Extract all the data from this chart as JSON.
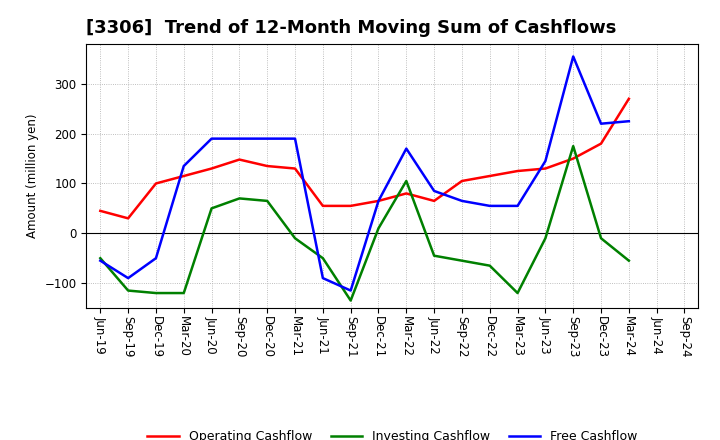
{
  "title": "[3306]  Trend of 12-Month Moving Sum of Cashflows",
  "ylabel": "Amount (million yen)",
  "labels": [
    "Jun-19",
    "Sep-19",
    "Dec-19",
    "Mar-20",
    "Jun-20",
    "Sep-20",
    "Dec-20",
    "Mar-21",
    "Jun-21",
    "Sep-21",
    "Dec-21",
    "Mar-22",
    "Jun-22",
    "Sep-22",
    "Dec-22",
    "Mar-23",
    "Jun-23",
    "Sep-23",
    "Dec-23",
    "Mar-24",
    "Jun-24",
    "Sep-24"
  ],
  "operating": [
    45,
    30,
    100,
    115,
    130,
    148,
    135,
    130,
    55,
    55,
    65,
    80,
    65,
    105,
    115,
    125,
    130,
    150,
    180,
    270,
    null,
    null
  ],
  "investing": [
    -50,
    -115,
    -120,
    -120,
    50,
    70,
    65,
    -10,
    -50,
    -135,
    10,
    105,
    -45,
    -55,
    -65,
    -120,
    -10,
    175,
    -10,
    -55,
    null,
    null
  ],
  "free": [
    -55,
    -90,
    -50,
    135,
    190,
    190,
    190,
    190,
    -90,
    -115,
    65,
    170,
    85,
    65,
    55,
    55,
    145,
    355,
    220,
    225,
    null,
    null
  ],
  "operating_color": "#ff0000",
  "investing_color": "#008000",
  "free_color": "#0000ff",
  "ylim": [
    -150,
    380
  ],
  "yticks": [
    -100,
    0,
    100,
    200,
    300
  ],
  "background_color": "#ffffff",
  "grid_color": "#aaaaaa",
  "title_fontsize": 13,
  "label_fontsize": 8.5,
  "tick_fontsize": 8.5
}
